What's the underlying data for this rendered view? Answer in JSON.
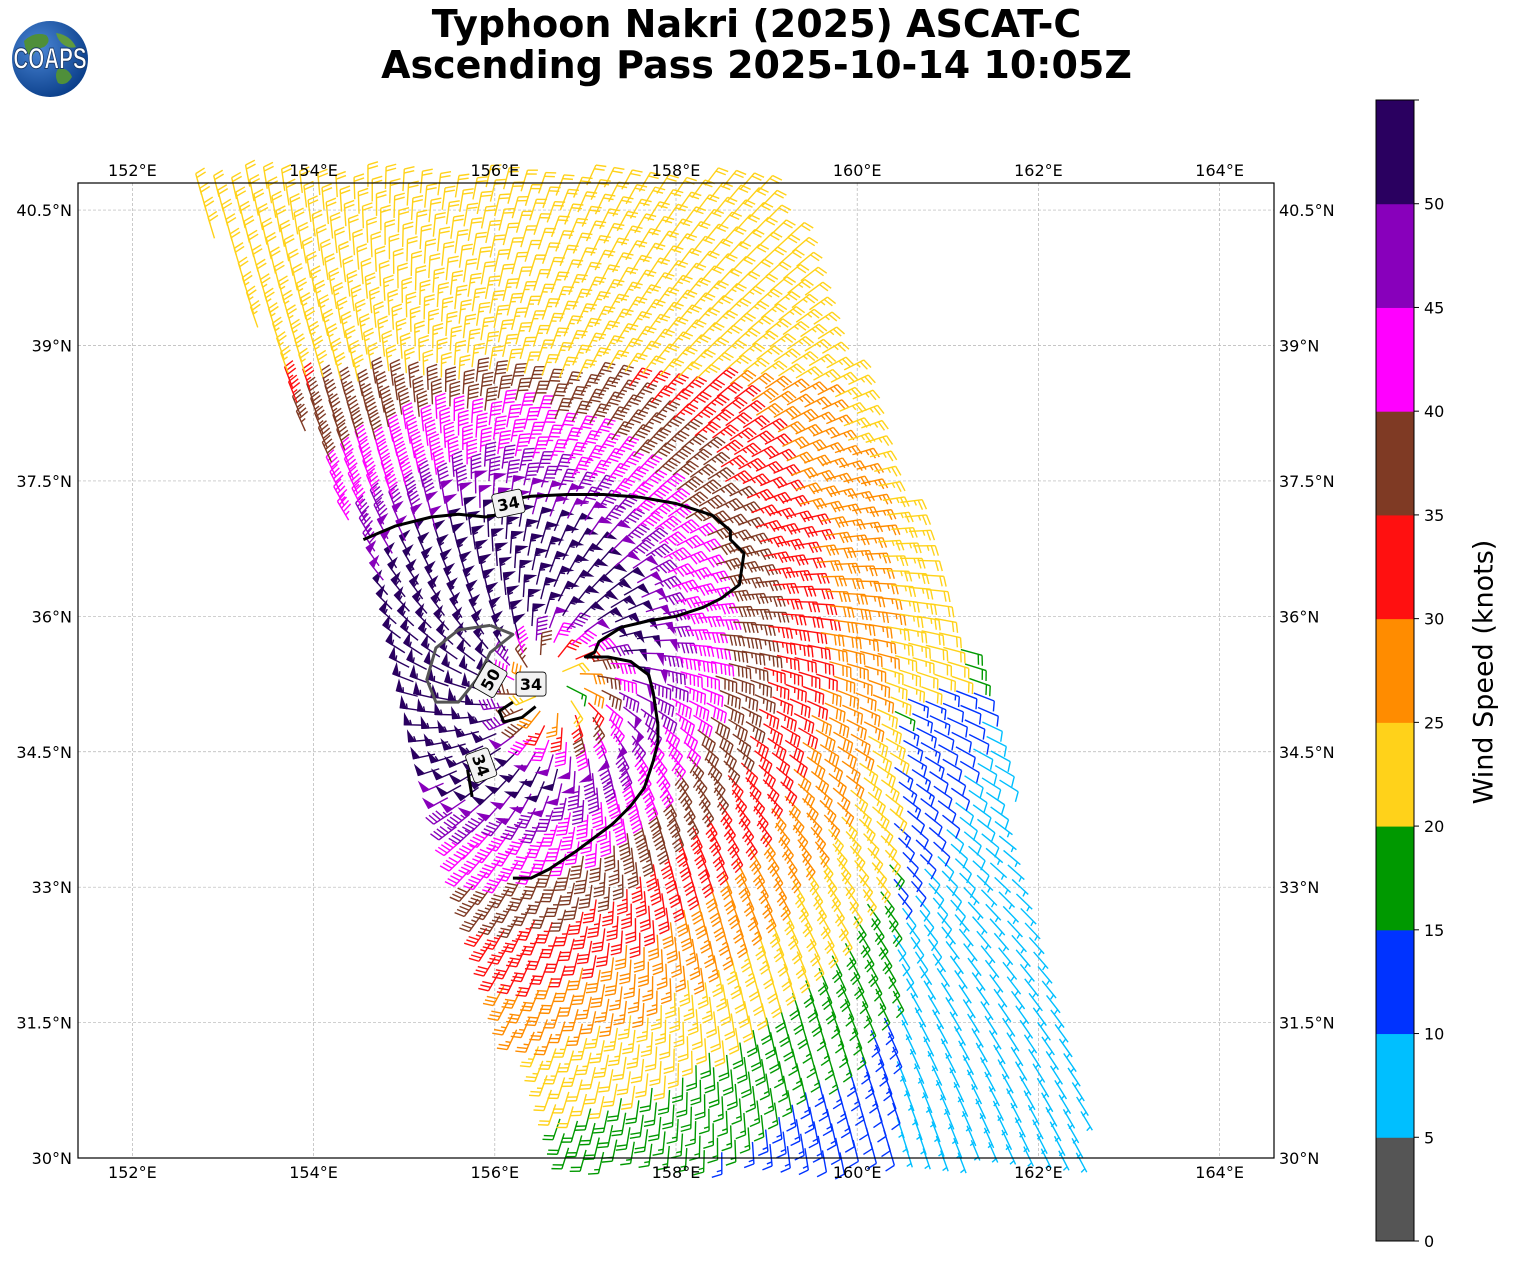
{
  "title": {
    "line1": "Typhoon Nakri (2025) ASCAT-C",
    "line2": "Ascending Pass 2025-10-14 10:05Z"
  },
  "logo": {
    "text": "COAPS",
    "icon": "globe-logo-icon"
  },
  "map": {
    "lon_range": [
      151.4,
      164.6
    ],
    "lat_range": [
      30.0,
      40.8
    ],
    "lon_ticks": [
      {
        "value": 152,
        "label": "152°E"
      },
      {
        "value": 154,
        "label": "154°E"
      },
      {
        "value": 156,
        "label": "156°E"
      },
      {
        "value": 158,
        "label": "158°E"
      },
      {
        "value": 160,
        "label": "160°E"
      },
      {
        "value": 162,
        "label": "162°E"
      },
      {
        "value": 164,
        "label": "164°E"
      }
    ],
    "lat_ticks": [
      {
        "value": 30,
        "label": "30°N"
      },
      {
        "value": 31.5,
        "label": "31.5°N"
      },
      {
        "value": 33,
        "label": "33°N"
      },
      {
        "value": 34.5,
        "label": "34.5°N"
      },
      {
        "value": 36,
        "label": "36°N"
      },
      {
        "value": 37.5,
        "label": "37.5°N"
      },
      {
        "value": 39,
        "label": "39°N"
      },
      {
        "value": 40.5,
        "label": "40.5°N"
      }
    ],
    "gridlines": true,
    "storm_center": {
      "lon": 156.6,
      "lat": 35.25
    },
    "swath_corners": [
      [
        152.6,
        40.8
      ],
      [
        159.0,
        40.8
      ],
      [
        161.3,
        35.3
      ],
      [
        162.6,
        30.0
      ],
      [
        156.7,
        30.0
      ],
      [
        154.5,
        36.8
      ]
    ],
    "contours": [
      {
        "label": "34",
        "points": [
          [
            154.55,
            36.85
          ],
          [
            154.9,
            37.0
          ],
          [
            155.3,
            37.1
          ],
          [
            155.6,
            37.13
          ],
          [
            155.9,
            37.1
          ],
          [
            156.0,
            37.12
          ],
          [
            156.2,
            37.3
          ],
          [
            156.4,
            37.33
          ],
          [
            156.8,
            37.35
          ],
          [
            157.2,
            37.35
          ],
          [
            157.6,
            37.32
          ],
          [
            158.0,
            37.25
          ],
          [
            158.4,
            37.12
          ],
          [
            158.6,
            36.95
          ],
          [
            158.6,
            36.85
          ],
          [
            158.75,
            36.7
          ],
          [
            158.7,
            36.35
          ],
          [
            158.5,
            36.2
          ],
          [
            158.3,
            36.1
          ],
          [
            158.0,
            36.0
          ],
          [
            157.7,
            35.95
          ],
          [
            157.4,
            35.88
          ],
          [
            157.15,
            35.72
          ],
          [
            157.1,
            35.6
          ],
          [
            157.0,
            35.55
          ],
          [
            157.25,
            35.55
          ],
          [
            157.5,
            35.5
          ],
          [
            157.7,
            35.35
          ],
          [
            157.75,
            35.15
          ],
          [
            157.8,
            34.8
          ],
          [
            157.8,
            34.6
          ],
          [
            157.75,
            34.4
          ],
          [
            157.65,
            34.1
          ],
          [
            157.5,
            33.9
          ],
          [
            157.3,
            33.7
          ],
          [
            157.1,
            33.55
          ],
          [
            156.9,
            33.4
          ],
          [
            156.6,
            33.2
          ],
          [
            156.4,
            33.1
          ],
          [
            156.2,
            33.1
          ]
        ]
      },
      {
        "label": "34",
        "points": [
          [
            156.2,
            35.05
          ],
          [
            156.05,
            34.95
          ],
          [
            156.1,
            34.83
          ],
          [
            156.3,
            34.88
          ],
          [
            156.45,
            35.0
          ]
        ]
      },
      {
        "label": "34",
        "points": [
          [
            155.75,
            34.0
          ],
          [
            155.7,
            34.3
          ]
        ]
      },
      {
        "label": "50",
        "points": [
          [
            155.95,
            35.9
          ],
          [
            155.6,
            35.85
          ],
          [
            155.35,
            35.65
          ],
          [
            155.25,
            35.3
          ],
          [
            155.35,
            35.05
          ],
          [
            155.6,
            35.05
          ],
          [
            155.8,
            35.3
          ],
          [
            155.95,
            35.6
          ],
          [
            156.2,
            35.8
          ],
          [
            155.95,
            35.9
          ]
        ]
      }
    ]
  },
  "colorbar": {
    "title": "Wind Speed (knots)",
    "ticks": [
      0,
      5,
      10,
      15,
      20,
      25,
      30,
      35,
      40,
      45,
      50
    ],
    "tick_labels": [
      "0",
      "5",
      "10",
      "15",
      "20",
      "25",
      "30",
      "35",
      "40",
      "45",
      "50"
    ],
    "bins": [
      {
        "from": 0,
        "to": 5,
        "color": "#555555"
      },
      {
        "from": 5,
        "to": 10,
        "color": "#00bfff"
      },
      {
        "from": 10,
        "to": 15,
        "color": "#0033ff"
      },
      {
        "from": 15,
        "to": 20,
        "color": "#009900"
      },
      {
        "from": 20,
        "to": 25,
        "color": "#ffd21a"
      },
      {
        "from": 25,
        "to": 30,
        "color": "#ff8c00"
      },
      {
        "from": 30,
        "to": 35,
        "color": "#ff1010"
      },
      {
        "from": 35,
        "to": 40,
        "color": "#7f3a24"
      },
      {
        "from": 40,
        "to": 45,
        "color": "#ff00ff"
      },
      {
        "from": 45,
        "to": 50,
        "color": "#8800bb"
      },
      {
        "from": 50,
        "to": 55,
        "color": "#2a0060"
      }
    ]
  }
}
